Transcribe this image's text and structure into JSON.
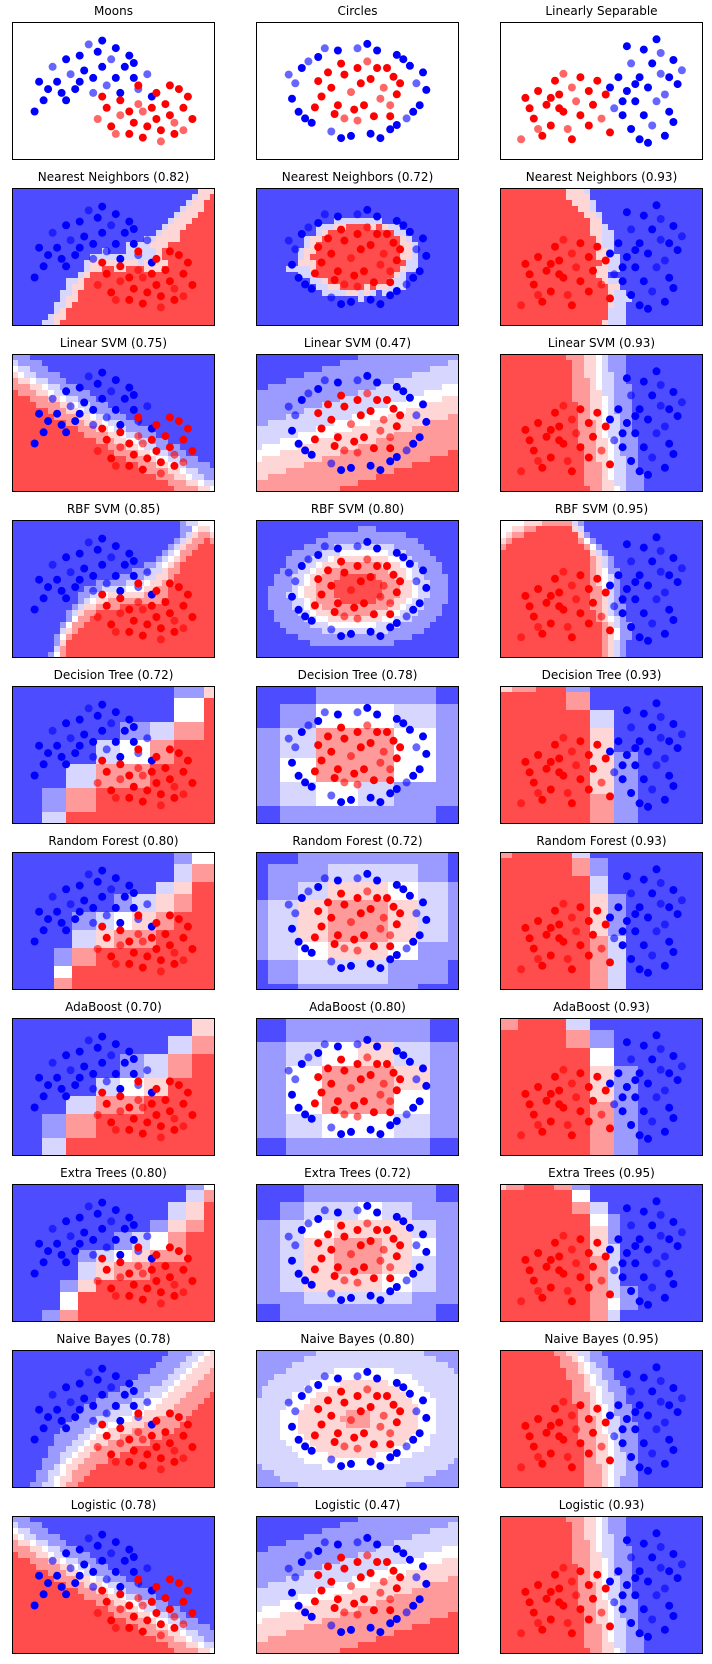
{
  "chart_data": {
    "type": "scatter",
    "colors": {
      "class_a": "#ff0000",
      "class_b": "#0000ff",
      "strong_a": "#ff4d4d",
      "mid_a": "#ff9a9a",
      "light_a": "#ffd6d6",
      "neutral": "#ffffff",
      "light_b": "#d6d6ff",
      "mid_b": "#9a9aff",
      "strong_b": "#4d4dff",
      "axes": "#000000"
    },
    "columns": [
      "Moons",
      "Circles",
      "Linearly Separable"
    ],
    "rows": [
      {
        "classifier": "Nearest Neighbors",
        "scores": [
          "0.82",
          "0.72",
          "0.93"
        ],
        "boundary": "knn"
      },
      {
        "classifier": "Linear SVM",
        "scores": [
          "0.75",
          "0.47",
          "0.93"
        ],
        "boundary": "linear"
      },
      {
        "classifier": "RBF SVM",
        "scores": [
          "0.85",
          "0.80",
          "0.95"
        ],
        "boundary": "rbf"
      },
      {
        "classifier": "Decision Tree",
        "scores": [
          "0.72",
          "0.78",
          "0.93"
        ],
        "boundary": "tree"
      },
      {
        "classifier": "Random Forest",
        "scores": [
          "0.80",
          "0.72",
          "0.93"
        ],
        "boundary": "forest"
      },
      {
        "classifier": "AdaBoost",
        "scores": [
          "0.70",
          "0.80",
          "0.93"
        ],
        "boundary": "ada"
      },
      {
        "classifier": "Extra Trees",
        "scores": [
          "0.80",
          "0.72",
          "0.95"
        ],
        "boundary": "extra"
      },
      {
        "classifier": "Naive Bayes",
        "scores": [
          "0.78",
          "0.80",
          "0.95"
        ],
        "boundary": "nb"
      },
      {
        "classifier": "Logistic",
        "scores": [
          "0.78",
          "0.47",
          "0.93"
        ],
        "boundary": "linear"
      }
    ],
    "datasets": [
      {
        "name": "Moons",
        "points": [
          [
            -0.9,
            0.9,
            1
          ],
          [
            -0.6,
            1.1,
            1
          ],
          [
            -0.3,
            1.2,
            1
          ],
          [
            0.1,
            1.3,
            1
          ],
          [
            0.4,
            1.1,
            1
          ],
          [
            0.7,
            0.9,
            1
          ],
          [
            0.9,
            0.6,
            1
          ],
          [
            -0.8,
            0.5,
            1
          ],
          [
            -0.5,
            0.7,
            1
          ],
          [
            -0.2,
            0.8,
            1
          ],
          [
            0.2,
            0.9,
            1
          ],
          [
            0.5,
            0.6,
            1
          ],
          [
            1.0,
            0.3,
            1
          ],
          [
            -1.0,
            0.3,
            1
          ],
          [
            -0.4,
            0.3,
            1
          ],
          [
            0.0,
            0.6,
            1
          ],
          [
            0.3,
            0.4,
            1
          ],
          [
            -0.7,
            0.2,
            1
          ],
          [
            0.8,
            1.2,
            1
          ],
          [
            -1.2,
            0.5,
            1
          ],
          [
            -0.1,
            1.5,
            1
          ],
          [
            0.6,
            0.2,
            1
          ],
          [
            -1.1,
            0.0,
            1
          ],
          [
            0.2,
            1.6,
            1
          ],
          [
            1.2,
            0.7,
            1
          ],
          [
            -0.3,
            0.5,
            1
          ],
          [
            0.5,
            1.4,
            1
          ],
          [
            -0.6,
            0.0,
            1
          ],
          [
            0.0,
            0.2,
            1
          ],
          [
            1.3,
            0.1,
            1
          ],
          [
            -1.3,
            -0.3,
            1
          ],
          [
            0.9,
            1.0,
            1
          ],
          [
            1.1,
            -0.3,
            0
          ],
          [
            1.4,
            -0.5,
            0
          ],
          [
            1.7,
            -0.4,
            0
          ],
          [
            2.0,
            -0.2,
            0
          ],
          [
            0.6,
            -0.4,
            0
          ],
          [
            0.9,
            -0.6,
            0
          ],
          [
            1.2,
            -0.7,
            0
          ],
          [
            1.5,
            -0.8,
            0
          ],
          [
            1.8,
            -0.6,
            0
          ],
          [
            2.1,
            0.1,
            0
          ],
          [
            0.3,
            -0.2,
            0
          ],
          [
            0.6,
            0.0,
            0
          ],
          [
            1.0,
            -0.1,
            0
          ],
          [
            1.3,
            -0.2,
            0
          ],
          [
            1.6,
            -0.1,
            0
          ],
          [
            1.9,
            0.3,
            0
          ],
          [
            0.1,
            -0.5,
            0
          ],
          [
            0.4,
            -0.7,
            0
          ],
          [
            0.8,
            -0.9,
            0
          ],
          [
            1.1,
            -1.0,
            0
          ],
          [
            1.5,
            -1.1,
            0
          ],
          [
            1.8,
            -0.9,
            0
          ],
          [
            2.2,
            -0.5,
            0
          ],
          [
            0.2,
            0.1,
            0
          ],
          [
            0.5,
            -0.9,
            0
          ],
          [
            1.0,
            0.4,
            0
          ],
          [
            1.4,
            0.2,
            0
          ],
          [
            1.7,
            0.4,
            0
          ],
          [
            2.0,
            -0.8,
            0
          ],
          [
            0.8,
            -0.3,
            0
          ]
        ]
      },
      {
        "name": "Circles",
        "points": [
          [
            0.9,
            0.2,
            1
          ],
          [
            0.8,
            0.6,
            1
          ],
          [
            0.6,
            0.85,
            1
          ],
          [
            0.3,
            0.95,
            1
          ],
          [
            0.0,
            1.0,
            1
          ],
          [
            -0.3,
            0.95,
            1
          ],
          [
            -0.6,
            0.8,
            1
          ],
          [
            -0.85,
            0.55,
            1
          ],
          [
            -0.95,
            0.2,
            1
          ],
          [
            -1.0,
            -0.15,
            1
          ],
          [
            -0.9,
            -0.45,
            1
          ],
          [
            -0.7,
            -0.7,
            1
          ],
          [
            -0.4,
            -0.9,
            1
          ],
          [
            -0.1,
            -1.0,
            1
          ],
          [
            0.2,
            -0.95,
            1
          ],
          [
            0.5,
            -0.85,
            1
          ],
          [
            0.75,
            -0.6,
            1
          ],
          [
            0.95,
            -0.3,
            1
          ],
          [
            1.05,
            0.05,
            1
          ],
          [
            0.7,
            0.75,
            1
          ],
          [
            -0.75,
            0.7,
            1
          ],
          [
            -0.8,
            -0.6,
            1
          ],
          [
            0.6,
            -0.75,
            1
          ],
          [
            0.15,
            1.1,
            1
          ],
          [
            -1.05,
            0.4,
            1
          ],
          [
            0.85,
            -0.45,
            1
          ],
          [
            -0.25,
            -1.05,
            1
          ],
          [
            1.0,
            0.45,
            1
          ],
          [
            -0.5,
            1.0,
            1
          ],
          [
            0.35,
            -1.05,
            1
          ],
          [
            0.2,
            0.3,
            0
          ],
          [
            -0.2,
            0.4,
            0
          ],
          [
            0.4,
            0.1,
            0
          ],
          [
            -0.4,
            0.1,
            0
          ],
          [
            0.1,
            -0.3,
            0
          ],
          [
            -0.3,
            -0.3,
            0
          ],
          [
            0.5,
            -0.3,
            0
          ],
          [
            0.0,
            0.55,
            0
          ],
          [
            -0.55,
            -0.1,
            0
          ],
          [
            0.3,
            0.55,
            0
          ],
          [
            -0.1,
            0.0,
            0
          ],
          [
            0.55,
            0.35,
            0
          ],
          [
            -0.45,
            0.45,
            0
          ],
          [
            0.25,
            -0.55,
            0
          ],
          [
            -0.2,
            -0.6,
            0
          ],
          [
            0.6,
            -0.05,
            0
          ],
          [
            -0.6,
            0.25,
            0
          ],
          [
            0.05,
            0.2,
            0
          ],
          [
            0.35,
            -0.15,
            0
          ],
          [
            -0.35,
            -0.5,
            0
          ],
          [
            0.45,
            0.55,
            0
          ],
          [
            -0.05,
            -0.4,
            0
          ],
          [
            0.15,
            0.7,
            0
          ],
          [
            -0.65,
            -0.35,
            0
          ],
          [
            0.65,
            0.2,
            0
          ],
          [
            -0.25,
            0.65,
            0
          ],
          [
            0.0,
            -0.65,
            0
          ],
          [
            0.5,
            -0.55,
            0
          ]
        ]
      },
      {
        "name": "Linearly Separable",
        "points": [
          [
            -1.6,
            -0.9,
            0
          ],
          [
            -1.3,
            -0.3,
            0
          ],
          [
            -1.0,
            0.1,
            0
          ],
          [
            -0.7,
            0.4,
            0
          ],
          [
            -0.4,
            0.6,
            0
          ],
          [
            -1.2,
            0.5,
            0
          ],
          [
            -0.9,
            -0.5,
            0
          ],
          [
            -0.6,
            -0.1,
            0
          ],
          [
            -0.3,
            0.2,
            0
          ],
          [
            0.0,
            0.5,
            0
          ],
          [
            -1.4,
            0.0,
            0
          ],
          [
            -0.8,
            0.8,
            0
          ],
          [
            -0.5,
            -0.6,
            0
          ],
          [
            -0.2,
            -0.2,
            0
          ],
          [
            0.1,
            0.1,
            0
          ],
          [
            -1.1,
            -0.8,
            0
          ],
          [
            -0.6,
            1.0,
            0
          ],
          [
            0.2,
            0.8,
            0
          ],
          [
            -1.5,
            0.3,
            0
          ],
          [
            -0.4,
            -0.9,
            0
          ],
          [
            0.3,
            -0.3,
            0
          ],
          [
            -0.9,
            0.3,
            0
          ],
          [
            0.0,
            -0.5,
            0
          ],
          [
            0.4,
            0.4,
            0
          ],
          [
            -1.2,
            -0.6,
            0
          ],
          [
            -0.7,
            0.0,
            0
          ],
          [
            0.5,
            -0.7,
            0
          ],
          [
            -0.2,
            0.9,
            0
          ],
          [
            0.6,
            0.0,
            1
          ],
          [
            0.9,
            0.5,
            1
          ],
          [
            1.2,
            0.9,
            1
          ],
          [
            1.5,
            1.3,
            1
          ],
          [
            1.8,
            0.4,
            1
          ],
          [
            0.8,
            -0.2,
            1
          ],
          [
            1.1,
            0.2,
            1
          ],
          [
            1.4,
            0.6,
            1
          ],
          [
            1.7,
            1.0,
            1
          ],
          [
            2.0,
            1.4,
            1
          ],
          [
            1.0,
            -0.6,
            1
          ],
          [
            1.3,
            -0.2,
            1
          ],
          [
            1.6,
            0.2,
            1
          ],
          [
            1.9,
            -0.1,
            1
          ],
          [
            2.1,
            0.7,
            1
          ],
          [
            0.7,
            0.9,
            1
          ],
          [
            1.0,
            1.3,
            1
          ],
          [
            1.3,
            1.7,
            1
          ],
          [
            1.6,
            2.0,
            1
          ],
          [
            1.2,
            -0.9,
            1
          ],
          [
            1.5,
            -0.5,
            1
          ],
          [
            1.8,
            -0.8,
            1
          ],
          [
            2.0,
            -0.4,
            1
          ],
          [
            0.9,
            1.8,
            1
          ],
          [
            1.7,
            1.6,
            1
          ],
          [
            0.5,
            0.6,
            1
          ],
          [
            1.1,
            0.7,
            1
          ],
          [
            1.4,
            -1.0,
            1
          ],
          [
            2.2,
            1.1,
            1
          ],
          [
            0.8,
            0.2,
            1
          ],
          [
            1.9,
            0.9,
            1
          ]
        ]
      }
    ]
  }
}
